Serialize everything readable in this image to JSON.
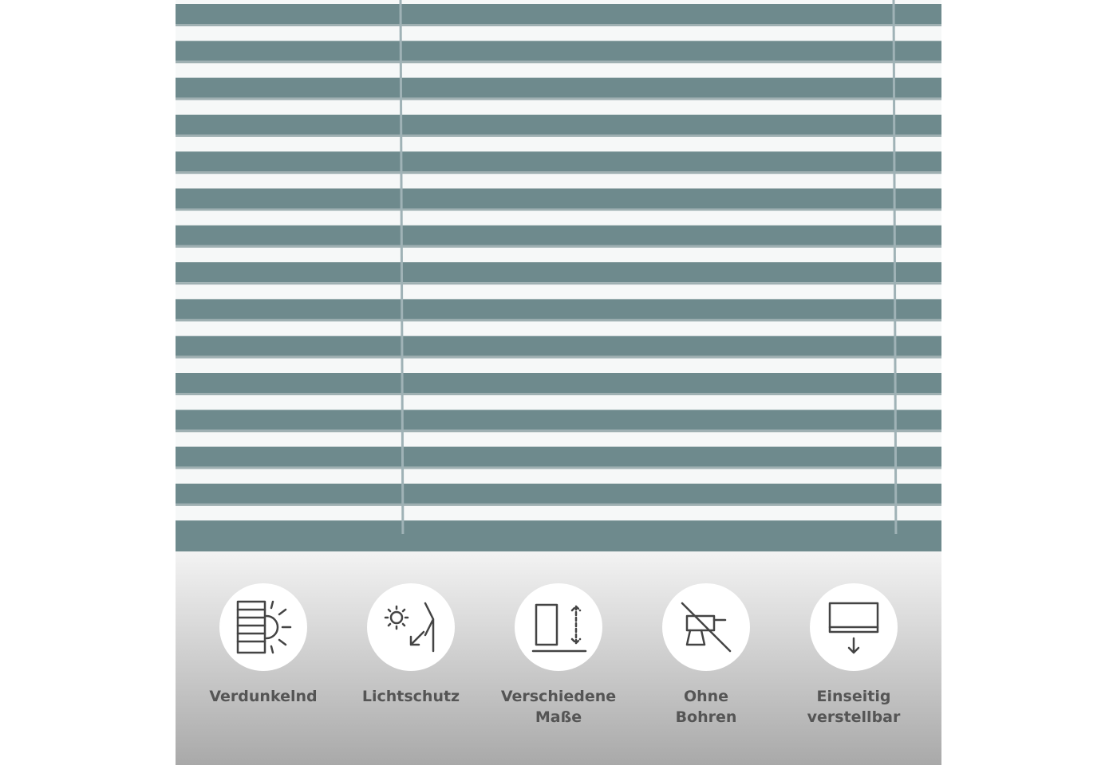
{
  "features": [
    {
      "lines": [
        "Verdunkelnd"
      ]
    },
    {
      "lines": [
        "Lichtschutz"
      ]
    },
    {
      "lines": [
        "Verschiedene",
        "Maße"
      ]
    },
    {
      "lines": [
        "Ohne",
        "Bohren"
      ]
    },
    {
      "lines": [
        "Einseitig",
        "verstellbar"
      ]
    }
  ]
}
